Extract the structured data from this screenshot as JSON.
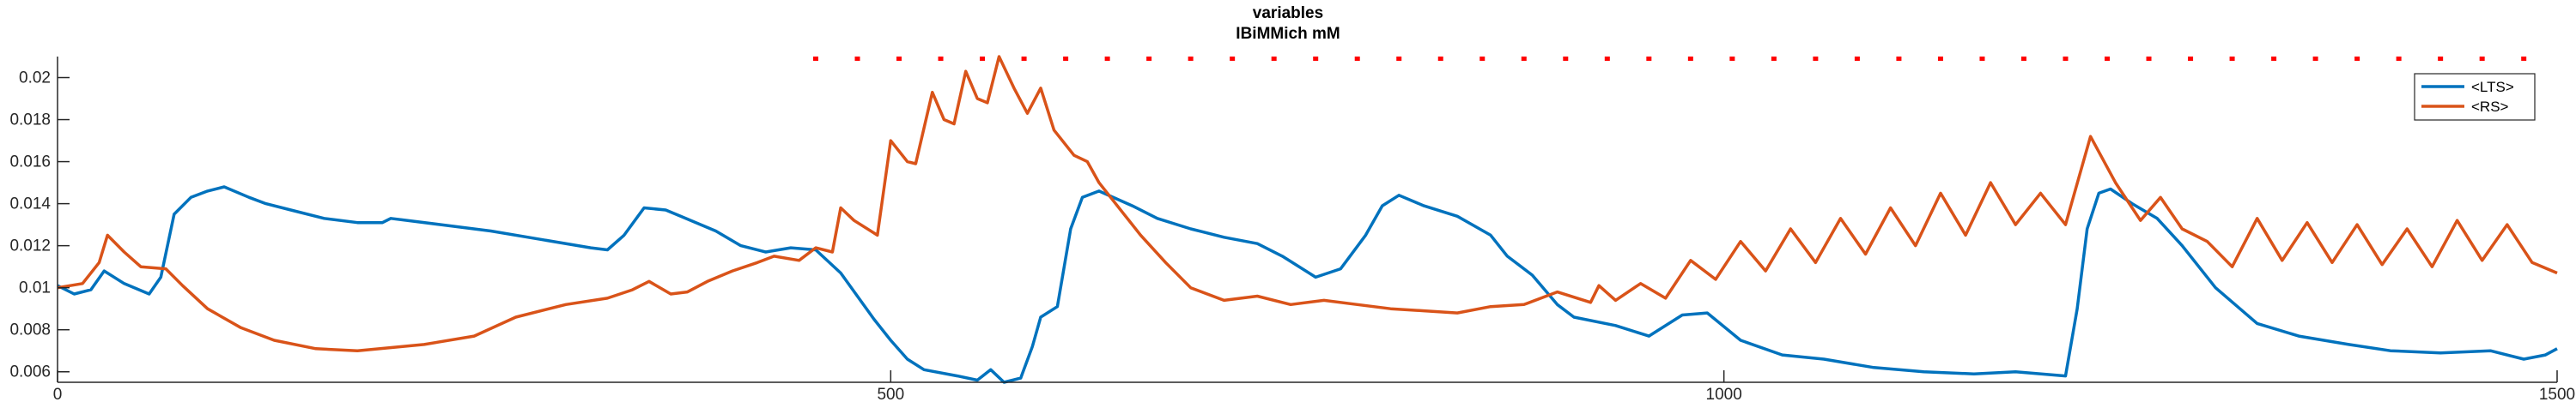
{
  "chart_data": {
    "type": "line",
    "title": [
      "variables",
      "IBiMMich mM"
    ],
    "xlabel": "",
    "ylabel": "",
    "xlim": [
      0,
      1500
    ],
    "ylim": [
      0.0055,
      0.021
    ],
    "x_ticks": [
      0,
      500,
      1000,
      1500
    ],
    "x_tick_labels": [
      "0",
      "500",
      "1000",
      "1500"
    ],
    "y_ticks": [
      0.006,
      0.008,
      0.01,
      0.012,
      0.014,
      0.016,
      0.018,
      0.02
    ],
    "y_tick_labels": [
      "0.006",
      "0.008",
      "0.01",
      "0.012",
      "0.014",
      "0.016",
      "0.018",
      "0.02"
    ],
    "grid": false,
    "legend_position": "top-right",
    "series": [
      {
        "name": "<LTS>",
        "color": "#0072BD",
        "points": [
          [
            0,
            0.0101
          ],
          [
            10,
            0.0097
          ],
          [
            20,
            0.0099
          ],
          [
            28,
            0.0108
          ],
          [
            40,
            0.0102
          ],
          [
            55,
            0.0097
          ],
          [
            62,
            0.0105
          ],
          [
            70,
            0.0135
          ],
          [
            80,
            0.0143
          ],
          [
            90,
            0.0146
          ],
          [
            100,
            0.0148
          ],
          [
            115,
            0.0143
          ],
          [
            125,
            0.014
          ],
          [
            140,
            0.0137
          ],
          [
            160,
            0.0133
          ],
          [
            180,
            0.0131
          ],
          [
            195,
            0.0131
          ],
          [
            200,
            0.0133
          ],
          [
            230,
            0.013
          ],
          [
            260,
            0.0127
          ],
          [
            290,
            0.0123
          ],
          [
            320,
            0.0119
          ],
          [
            330,
            0.0118
          ],
          [
            340,
            0.0125
          ],
          [
            352,
            0.0138
          ],
          [
            365,
            0.0137
          ],
          [
            380,
            0.0132
          ],
          [
            395,
            0.0127
          ],
          [
            410,
            0.012
          ],
          [
            425,
            0.0117
          ],
          [
            440,
            0.0119
          ],
          [
            455,
            0.0118
          ],
          [
            470,
            0.0107
          ],
          [
            480,
            0.0096
          ],
          [
            490,
            0.0085
          ],
          [
            500,
            0.0075
          ],
          [
            510,
            0.0066
          ],
          [
            520,
            0.0061
          ],
          [
            540,
            0.0058
          ],
          [
            552,
            0.0056
          ],
          [
            560,
            0.0061
          ],
          [
            568,
            0.0055
          ],
          [
            578,
            0.0057
          ],
          [
            585,
            0.0072
          ],
          [
            590,
            0.0086
          ],
          [
            600,
            0.0091
          ],
          [
            608,
            0.0128
          ],
          [
            615,
            0.0143
          ],
          [
            625,
            0.0146
          ],
          [
            645,
            0.0139
          ],
          [
            660,
            0.0133
          ],
          [
            680,
            0.0128
          ],
          [
            700,
            0.0124
          ],
          [
            720,
            0.0121
          ],
          [
            735,
            0.0115
          ],
          [
            755,
            0.0105
          ],
          [
            770,
            0.0109
          ],
          [
            785,
            0.0125
          ],
          [
            795,
            0.0139
          ],
          [
            805,
            0.0144
          ],
          [
            820,
            0.0139
          ],
          [
            840,
            0.0134
          ],
          [
            860,
            0.0125
          ],
          [
            870,
            0.0115
          ],
          [
            885,
            0.0106
          ],
          [
            900,
            0.0092
          ],
          [
            910,
            0.0086
          ],
          [
            935,
            0.0082
          ],
          [
            955,
            0.0077
          ],
          [
            975,
            0.0087
          ],
          [
            990,
            0.0088
          ],
          [
            1010,
            0.0075
          ],
          [
            1035,
            0.0068
          ],
          [
            1060,
            0.0066
          ],
          [
            1090,
            0.0062
          ],
          [
            1120,
            0.006
          ],
          [
            1150,
            0.0059
          ],
          [
            1175,
            0.006
          ],
          [
            1205,
            0.0058
          ],
          [
            1212,
            0.009
          ],
          [
            1218,
            0.0128
          ],
          [
            1225,
            0.0145
          ],
          [
            1232,
            0.0147
          ],
          [
            1245,
            0.014
          ],
          [
            1260,
            0.0133
          ],
          [
            1275,
            0.012
          ],
          [
            1295,
            0.01
          ],
          [
            1320,
            0.0083
          ],
          [
            1345,
            0.0077
          ],
          [
            1375,
            0.0073
          ],
          [
            1400,
            0.007
          ],
          [
            1430,
            0.0069
          ],
          [
            1460,
            0.007
          ],
          [
            1480,
            0.0066
          ],
          [
            1493,
            0.0068
          ],
          [
            1500,
            0.0071
          ]
        ]
      },
      {
        "name": "<RS>",
        "color": "#D95319",
        "points": [
          [
            0,
            0.01
          ],
          [
            15,
            0.0102
          ],
          [
            25,
            0.0112
          ],
          [
            30,
            0.0125
          ],
          [
            40,
            0.0117
          ],
          [
            50,
            0.011
          ],
          [
            65,
            0.0109
          ],
          [
            75,
            0.0101
          ],
          [
            90,
            0.009
          ],
          [
            110,
            0.0081
          ],
          [
            130,
            0.0075
          ],
          [
            155,
            0.0071
          ],
          [
            180,
            0.007
          ],
          [
            220,
            0.0073
          ],
          [
            250,
            0.0077
          ],
          [
            275,
            0.0086
          ],
          [
            305,
            0.0092
          ],
          [
            330,
            0.0095
          ],
          [
            345,
            0.0099
          ],
          [
            355,
            0.0103
          ],
          [
            368,
            0.0097
          ],
          [
            378,
            0.0098
          ],
          [
            390,
            0.0103
          ],
          [
            405,
            0.0108
          ],
          [
            420,
            0.0112
          ],
          [
            430,
            0.0115
          ],
          [
            445,
            0.0113
          ],
          [
            455,
            0.0119
          ],
          [
            465,
            0.0117
          ],
          [
            470,
            0.0138
          ],
          [
            478,
            0.0132
          ],
          [
            492,
            0.0125
          ],
          [
            500,
            0.017
          ],
          [
            510,
            0.016
          ],
          [
            515,
            0.0159
          ],
          [
            525,
            0.0193
          ],
          [
            532,
            0.018
          ],
          [
            538,
            0.0178
          ],
          [
            545,
            0.0203
          ],
          [
            552,
            0.019
          ],
          [
            558,
            0.0188
          ],
          [
            565,
            0.021
          ],
          [
            574,
            0.0195
          ],
          [
            582,
            0.0183
          ],
          [
            590,
            0.0195
          ],
          [
            598,
            0.0175
          ],
          [
            610,
            0.0163
          ],
          [
            618,
            0.016
          ],
          [
            625,
            0.015
          ],
          [
            640,
            0.0135
          ],
          [
            650,
            0.0125
          ],
          [
            665,
            0.0112
          ],
          [
            680,
            0.01
          ],
          [
            700,
            0.0094
          ],
          [
            720,
            0.0096
          ],
          [
            740,
            0.0092
          ],
          [
            760,
            0.0094
          ],
          [
            780,
            0.0092
          ],
          [
            800,
            0.009
          ],
          [
            820,
            0.0089
          ],
          [
            840,
            0.0088
          ],
          [
            860,
            0.0091
          ],
          [
            880,
            0.0092
          ],
          [
            900,
            0.0098
          ],
          [
            920,
            0.0093
          ],
          [
            925,
            0.0101
          ],
          [
            935,
            0.0094
          ],
          [
            950,
            0.0102
          ],
          [
            965,
            0.0095
          ],
          [
            980,
            0.0113
          ],
          [
            995,
            0.0104
          ],
          [
            1010,
            0.0122
          ],
          [
            1025,
            0.0108
          ],
          [
            1040,
            0.0128
          ],
          [
            1055,
            0.0112
          ],
          [
            1070,
            0.0133
          ],
          [
            1085,
            0.0116
          ],
          [
            1100,
            0.0138
          ],
          [
            1115,
            0.012
          ],
          [
            1130,
            0.0145
          ],
          [
            1145,
            0.0125
          ],
          [
            1160,
            0.015
          ],
          [
            1175,
            0.013
          ],
          [
            1190,
            0.0145
          ],
          [
            1205,
            0.013
          ],
          [
            1220,
            0.0172
          ],
          [
            1235,
            0.015
          ],
          [
            1250,
            0.0132
          ],
          [
            1262,
            0.0143
          ],
          [
            1275,
            0.0128
          ],
          [
            1290,
            0.0122
          ],
          [
            1305,
            0.011
          ],
          [
            1320,
            0.0133
          ],
          [
            1335,
            0.0113
          ],
          [
            1350,
            0.0131
          ],
          [
            1365,
            0.0112
          ],
          [
            1380,
            0.013
          ],
          [
            1395,
            0.0111
          ],
          [
            1410,
            0.0128
          ],
          [
            1425,
            0.011
          ],
          [
            1440,
            0.0132
          ],
          [
            1455,
            0.0113
          ],
          [
            1470,
            0.013
          ],
          [
            1485,
            0.0112
          ],
          [
            1500,
            0.0107
          ]
        ]
      }
    ],
    "markers": {
      "color": "#FF0000",
      "y": 0.0209,
      "x": [
        455,
        480,
        505,
        530,
        555,
        580,
        605,
        630,
        655,
        680,
        705,
        730,
        755,
        780,
        805,
        830,
        855,
        880,
        905,
        930,
        955,
        980,
        1005,
        1030,
        1055,
        1080,
        1105,
        1130,
        1155,
        1180,
        1205,
        1230,
        1255,
        1280,
        1305,
        1330,
        1355,
        1380,
        1405,
        1430,
        1455,
        1480
      ]
    }
  }
}
